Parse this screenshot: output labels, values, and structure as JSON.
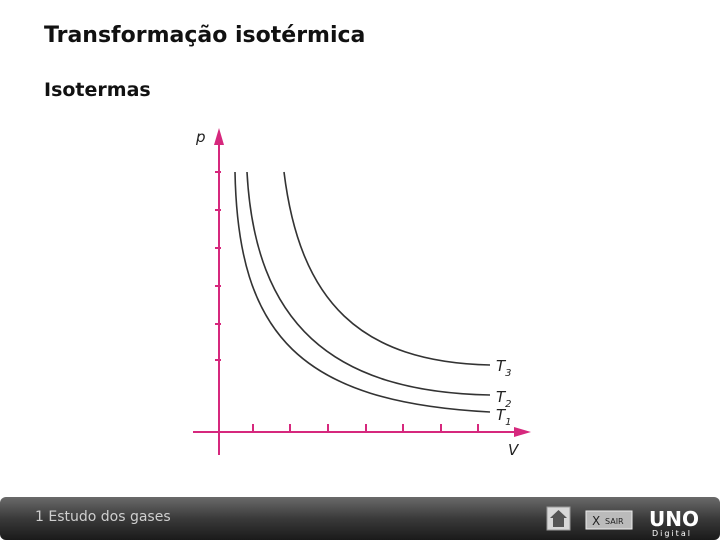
{
  "header": {
    "title": "Transformação isotérmica",
    "subtitle": "Isotermas"
  },
  "diagram": {
    "y_axis_label": "p",
    "x_axis_label": "V",
    "curves": [
      {
        "letter": "T",
        "sub": "3"
      },
      {
        "letter": "T",
        "sub": "2"
      },
      {
        "letter": "T",
        "sub": "1"
      }
    ]
  },
  "footer": {
    "section": "1 Estudo dos gases",
    "exit_x": "X",
    "exit_label": "SAIR",
    "logo": "UNO",
    "logo_sub": "Digital"
  }
}
